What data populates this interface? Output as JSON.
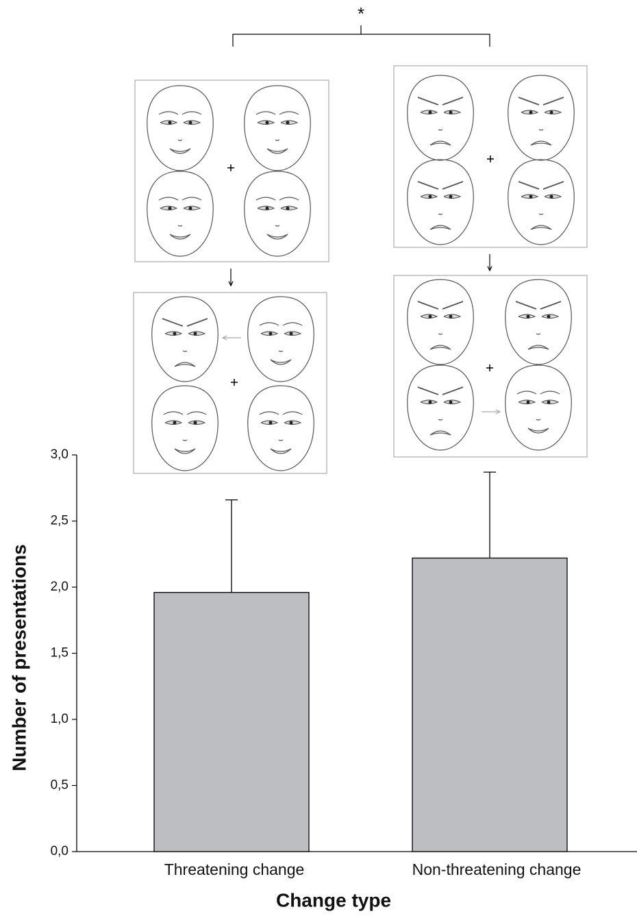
{
  "chart_data": {
    "type": "bar",
    "categories": [
      "Threatening change",
      "Non-threatening change"
    ],
    "values": [
      1.96,
      2.22
    ],
    "errors": [
      0.7,
      0.65
    ],
    "color": "#bcbec1",
    "ylim": [
      0,
      3
    ],
    "yticks": [
      {
        "value": 0,
        "label": "0,0"
      },
      {
        "value": 0.5,
        "label": "0,5"
      },
      {
        "value": 1,
        "label": "1,0"
      },
      {
        "value": 1.5,
        "label": "1,5"
      },
      {
        "value": 2,
        "label": "2,0"
      },
      {
        "value": 2.5,
        "label": "2,5"
      },
      {
        "value": 3,
        "label": "3,0"
      }
    ],
    "xlabel": "Change type",
    "ylabel": "Number of presentations",
    "annotation": "*"
  }
}
